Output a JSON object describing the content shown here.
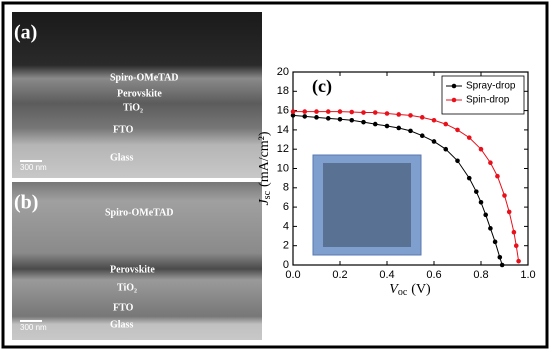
{
  "panels": [
    {
      "label": "(a)",
      "layers": [
        "Spiro-OMeTAD",
        "Perovskite",
        "TiO₂",
        "FTO",
        "Glass"
      ],
      "scale": "300 nm"
    },
    {
      "label": "(b)",
      "layers": [
        "Spiro-OMeTAD",
        "Perovskite",
        "TiO₂",
        "FTO",
        "Glass"
      ],
      "scale": "300 nm"
    }
  ],
  "chart_data": {
    "type": "line",
    "panel_label": "(c)",
    "x_label": {
      "main": "V",
      "sub": "oc",
      "unit": "(V)"
    },
    "y_label": {
      "main": "J",
      "sub": "sc",
      "unit": "(mA/cm²)"
    },
    "xlim": [
      0,
      1.0
    ],
    "ylim": [
      0,
      20
    ],
    "xticks": [
      {
        "value": 0,
        "label": "0.0"
      },
      0.2,
      0.4,
      0.6,
      0.8,
      {
        "value": 1.0,
        "label": "1.0"
      }
    ],
    "yticks": [
      0,
      2,
      4,
      6,
      8,
      10,
      12,
      14,
      16,
      18,
      20
    ],
    "legend": "upper right",
    "series": [
      {
        "name": "Spray-drop",
        "color": "#000000",
        "x": [
          0,
          0.05,
          0.1,
          0.15,
          0.2,
          0.25,
          0.3,
          0.35,
          0.4,
          0.45,
          0.5,
          0.55,
          0.6,
          0.65,
          0.7,
          0.75,
          0.78,
          0.8,
          0.82,
          0.84,
          0.86,
          0.88,
          0.89
        ],
        "values": [
          15.5,
          15.4,
          15.3,
          15.2,
          15.1,
          15.0,
          14.8,
          14.6,
          14.4,
          14.2,
          13.9,
          13.4,
          12.8,
          12.0,
          10.8,
          9.0,
          7.6,
          6.5,
          5.2,
          3.8,
          2.4,
          0.8,
          0
        ]
      },
      {
        "name": "Spin-drop",
        "color": "#e8101a",
        "x": [
          0,
          0.05,
          0.1,
          0.15,
          0.2,
          0.25,
          0.3,
          0.35,
          0.4,
          0.45,
          0.5,
          0.55,
          0.6,
          0.65,
          0.7,
          0.75,
          0.8,
          0.84,
          0.87,
          0.9,
          0.92,
          0.94,
          0.95,
          0.96
        ],
        "values": [
          15.9,
          15.9,
          15.9,
          15.9,
          15.9,
          15.85,
          15.8,
          15.8,
          15.7,
          15.6,
          15.5,
          15.3,
          15.0,
          14.6,
          14.0,
          13.2,
          12.0,
          10.6,
          9.2,
          7.2,
          5.5,
          3.4,
          2.0,
          0.4
        ]
      }
    ]
  }
}
